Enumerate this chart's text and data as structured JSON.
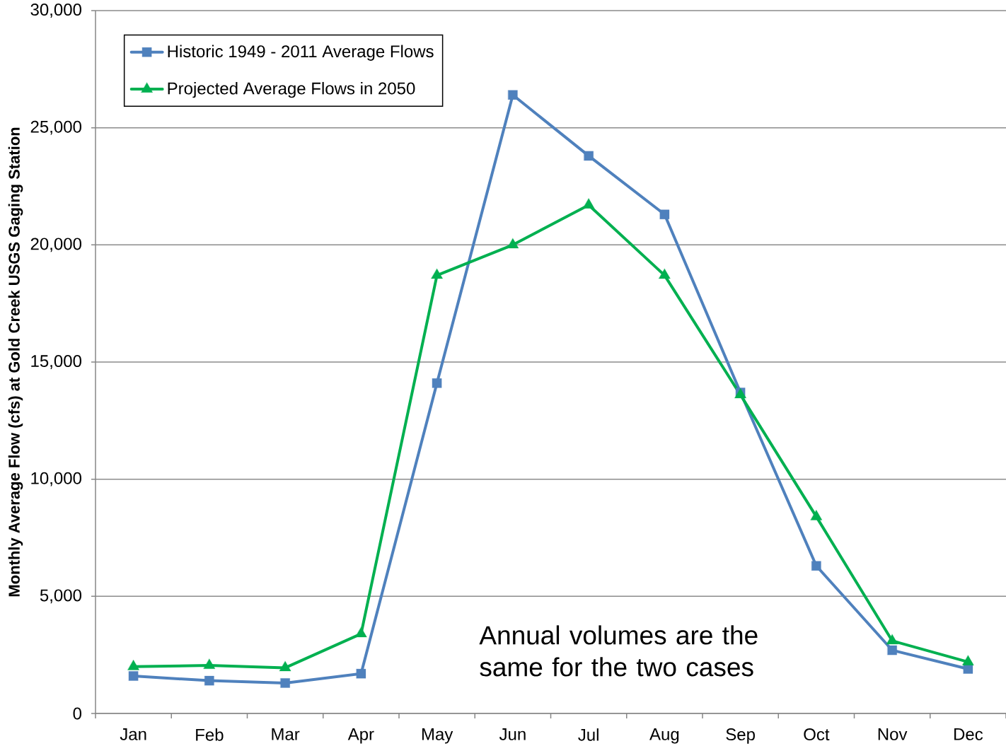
{
  "chart_data": {
    "type": "line",
    "ylabel": "Monthly Average Flow (cfs) at Gold Creek USGS Gaging Station",
    "categories": [
      "Jan",
      "Feb",
      "Mar",
      "Apr",
      "May",
      "Jun",
      "Jul",
      "Aug",
      "Sep",
      "Oct",
      "Nov",
      "Dec"
    ],
    "series": [
      {
        "name": "Historic 1949 - 2011 Average Flows",
        "color": "#4f81bd",
        "marker": "square",
        "values": [
          1600,
          1400,
          1300,
          1700,
          14100,
          26400,
          23800,
          21300,
          13700,
          6300,
          2700,
          1900
        ]
      },
      {
        "name": "Projected Average Flows in 2050",
        "color": "#00b050",
        "marker": "triangle",
        "values": [
          2000,
          2050,
          1950,
          3400,
          18700,
          20000,
          21700,
          18700,
          13600,
          8400,
          3100,
          2200
        ]
      }
    ],
    "ylim": [
      0,
      30000
    ],
    "yticks": [
      0,
      {
        "value": 5000,
        "label": "5,000"
      },
      {
        "value": 10000,
        "label": "10,000"
      },
      {
        "value": 15000,
        "label": "15,000"
      },
      {
        "value": 20000,
        "label": "20,000"
      },
      {
        "value": 25000,
        "label": "25,000"
      },
      {
        "value": 30000,
        "label": "30,000"
      }
    ],
    "grid": "y",
    "legend": "top left",
    "line_style": "solid",
    "annotations": [
      "Annual volumes are the same for the two cases"
    ]
  }
}
